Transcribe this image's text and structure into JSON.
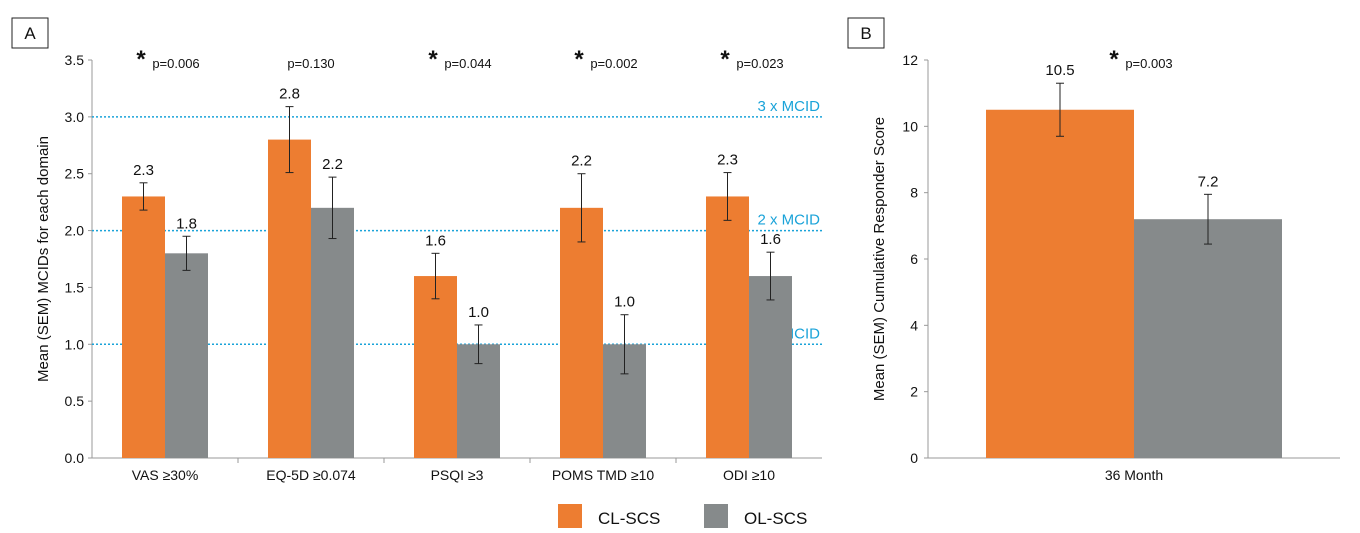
{
  "colors": {
    "cl": "#ED7D31",
    "ol": "#868A8B",
    "mcid": "#1AA3D9",
    "axis": "#999999"
  },
  "series_names": [
    "CL-SCS",
    "OL-SCS"
  ],
  "chart_data": [
    {
      "type": "bar",
      "panel_label": "A",
      "categories": [
        "VAS ≥30%",
        "EQ-5D ≥0.074",
        "PSQI ≥3",
        "POMS TMD ≥10",
        "ODI ≥10"
      ],
      "series": [
        {
          "name": "CL-SCS",
          "values": [
            2.3,
            2.8,
            1.6,
            2.2,
            2.3
          ],
          "sem": [
            0.12,
            0.29,
            0.2,
            0.3,
            0.21
          ],
          "labels": [
            "2.3",
            "2.8",
            "1.6",
            "2.2",
            "2.3"
          ]
        },
        {
          "name": "OL-SCS",
          "values": [
            1.8,
            2.2,
            1.0,
            1.0,
            1.6
          ],
          "sem": [
            0.15,
            0.27,
            0.17,
            0.26,
            0.21
          ],
          "labels": [
            "1.8",
            "2.2",
            "1.0",
            "1.0",
            "1.6"
          ]
        }
      ],
      "significance": [
        {
          "star": "*",
          "p": "p=0.006"
        },
        {
          "star": "",
          "p": "p=0.130"
        },
        {
          "star": "*",
          "p": "p=0.044"
        },
        {
          "star": "*",
          "p": "p=0.002"
        },
        {
          "star": "*",
          "p": "p=0.023"
        }
      ],
      "reference_lines": [
        {
          "value": 1.0,
          "label": "1 x MCID"
        },
        {
          "value": 2.0,
          "label": "2 x MCID"
        },
        {
          "value": 3.0,
          "label": "3 x MCID"
        }
      ],
      "ylabel": "Mean (SEM) MCIDs for each domain",
      "ylim": [
        0,
        3.5
      ],
      "yticks": [
        "0.0",
        "0.5",
        "1.0",
        "1.5",
        "2.0",
        "2.5",
        "3.0",
        "3.5"
      ],
      "legend": "bottom"
    },
    {
      "type": "bar",
      "panel_label": "B",
      "categories": [
        "36 Month"
      ],
      "series": [
        {
          "name": "CL-SCS",
          "values": [
            10.5
          ],
          "sem": [
            0.8
          ],
          "labels": [
            "10.5"
          ]
        },
        {
          "name": "OL-SCS",
          "values": [
            7.2
          ],
          "sem": [
            0.75
          ],
          "labels": [
            "7.2"
          ]
        }
      ],
      "significance": [
        {
          "star": "*",
          "p": "p=0.003"
        }
      ],
      "ylabel": "Mean (SEM) Cumulative Responder Score",
      "ylim": [
        0,
        12
      ],
      "yticks": [
        "0",
        "2",
        "4",
        "6",
        "8",
        "10",
        "12"
      ]
    }
  ]
}
